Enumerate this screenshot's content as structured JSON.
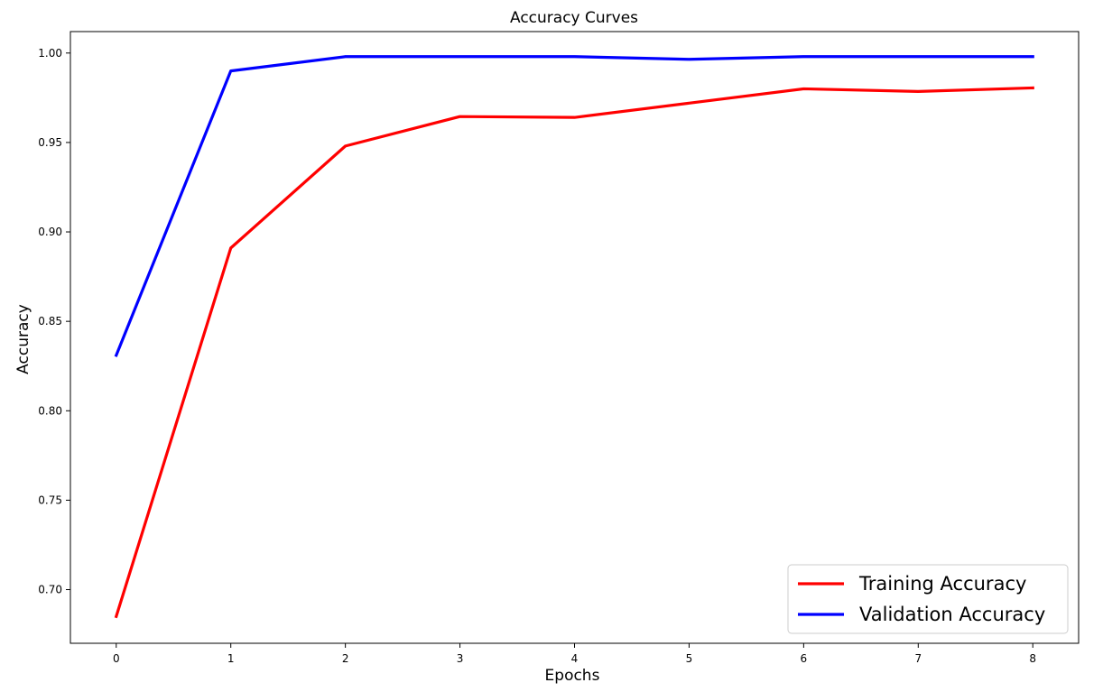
{
  "chart_data": {
    "type": "line",
    "title": "Accuracy Curves",
    "xlabel": "Epochs",
    "ylabel": "Accuracy",
    "x": [
      0,
      1,
      2,
      3,
      4,
      5,
      6,
      7,
      8
    ],
    "xlim": [
      -0.4,
      8.4
    ],
    "ylim": [
      0.67,
      1.012
    ],
    "xticks": [
      0,
      1,
      2,
      3,
      4,
      5,
      6,
      7,
      8
    ],
    "yticks": [
      0.7,
      0.75,
      0.8,
      0.85,
      0.9,
      0.95,
      1.0
    ],
    "ytick_labels": [
      "0.70",
      "0.75",
      "0.80",
      "0.85",
      "0.90",
      "0.95",
      "1.00"
    ],
    "xtick_labels": [
      "0",
      "1",
      "2",
      "3",
      "4",
      "5",
      "6",
      "7",
      "8"
    ],
    "grid": false,
    "legend_position": "lower-right",
    "series": [
      {
        "name": "Training Accuracy",
        "color": "#ff0000",
        "values": [
          0.685,
          0.891,
          0.948,
          0.9645,
          0.964,
          0.972,
          0.98,
          0.9785,
          0.9805
        ]
      },
      {
        "name": "Validation Accuracy",
        "color": "#0000ff",
        "values": [
          0.831,
          0.99,
          0.998,
          0.998,
          0.998,
          0.9965,
          0.998,
          0.998,
          0.998
        ]
      }
    ]
  }
}
